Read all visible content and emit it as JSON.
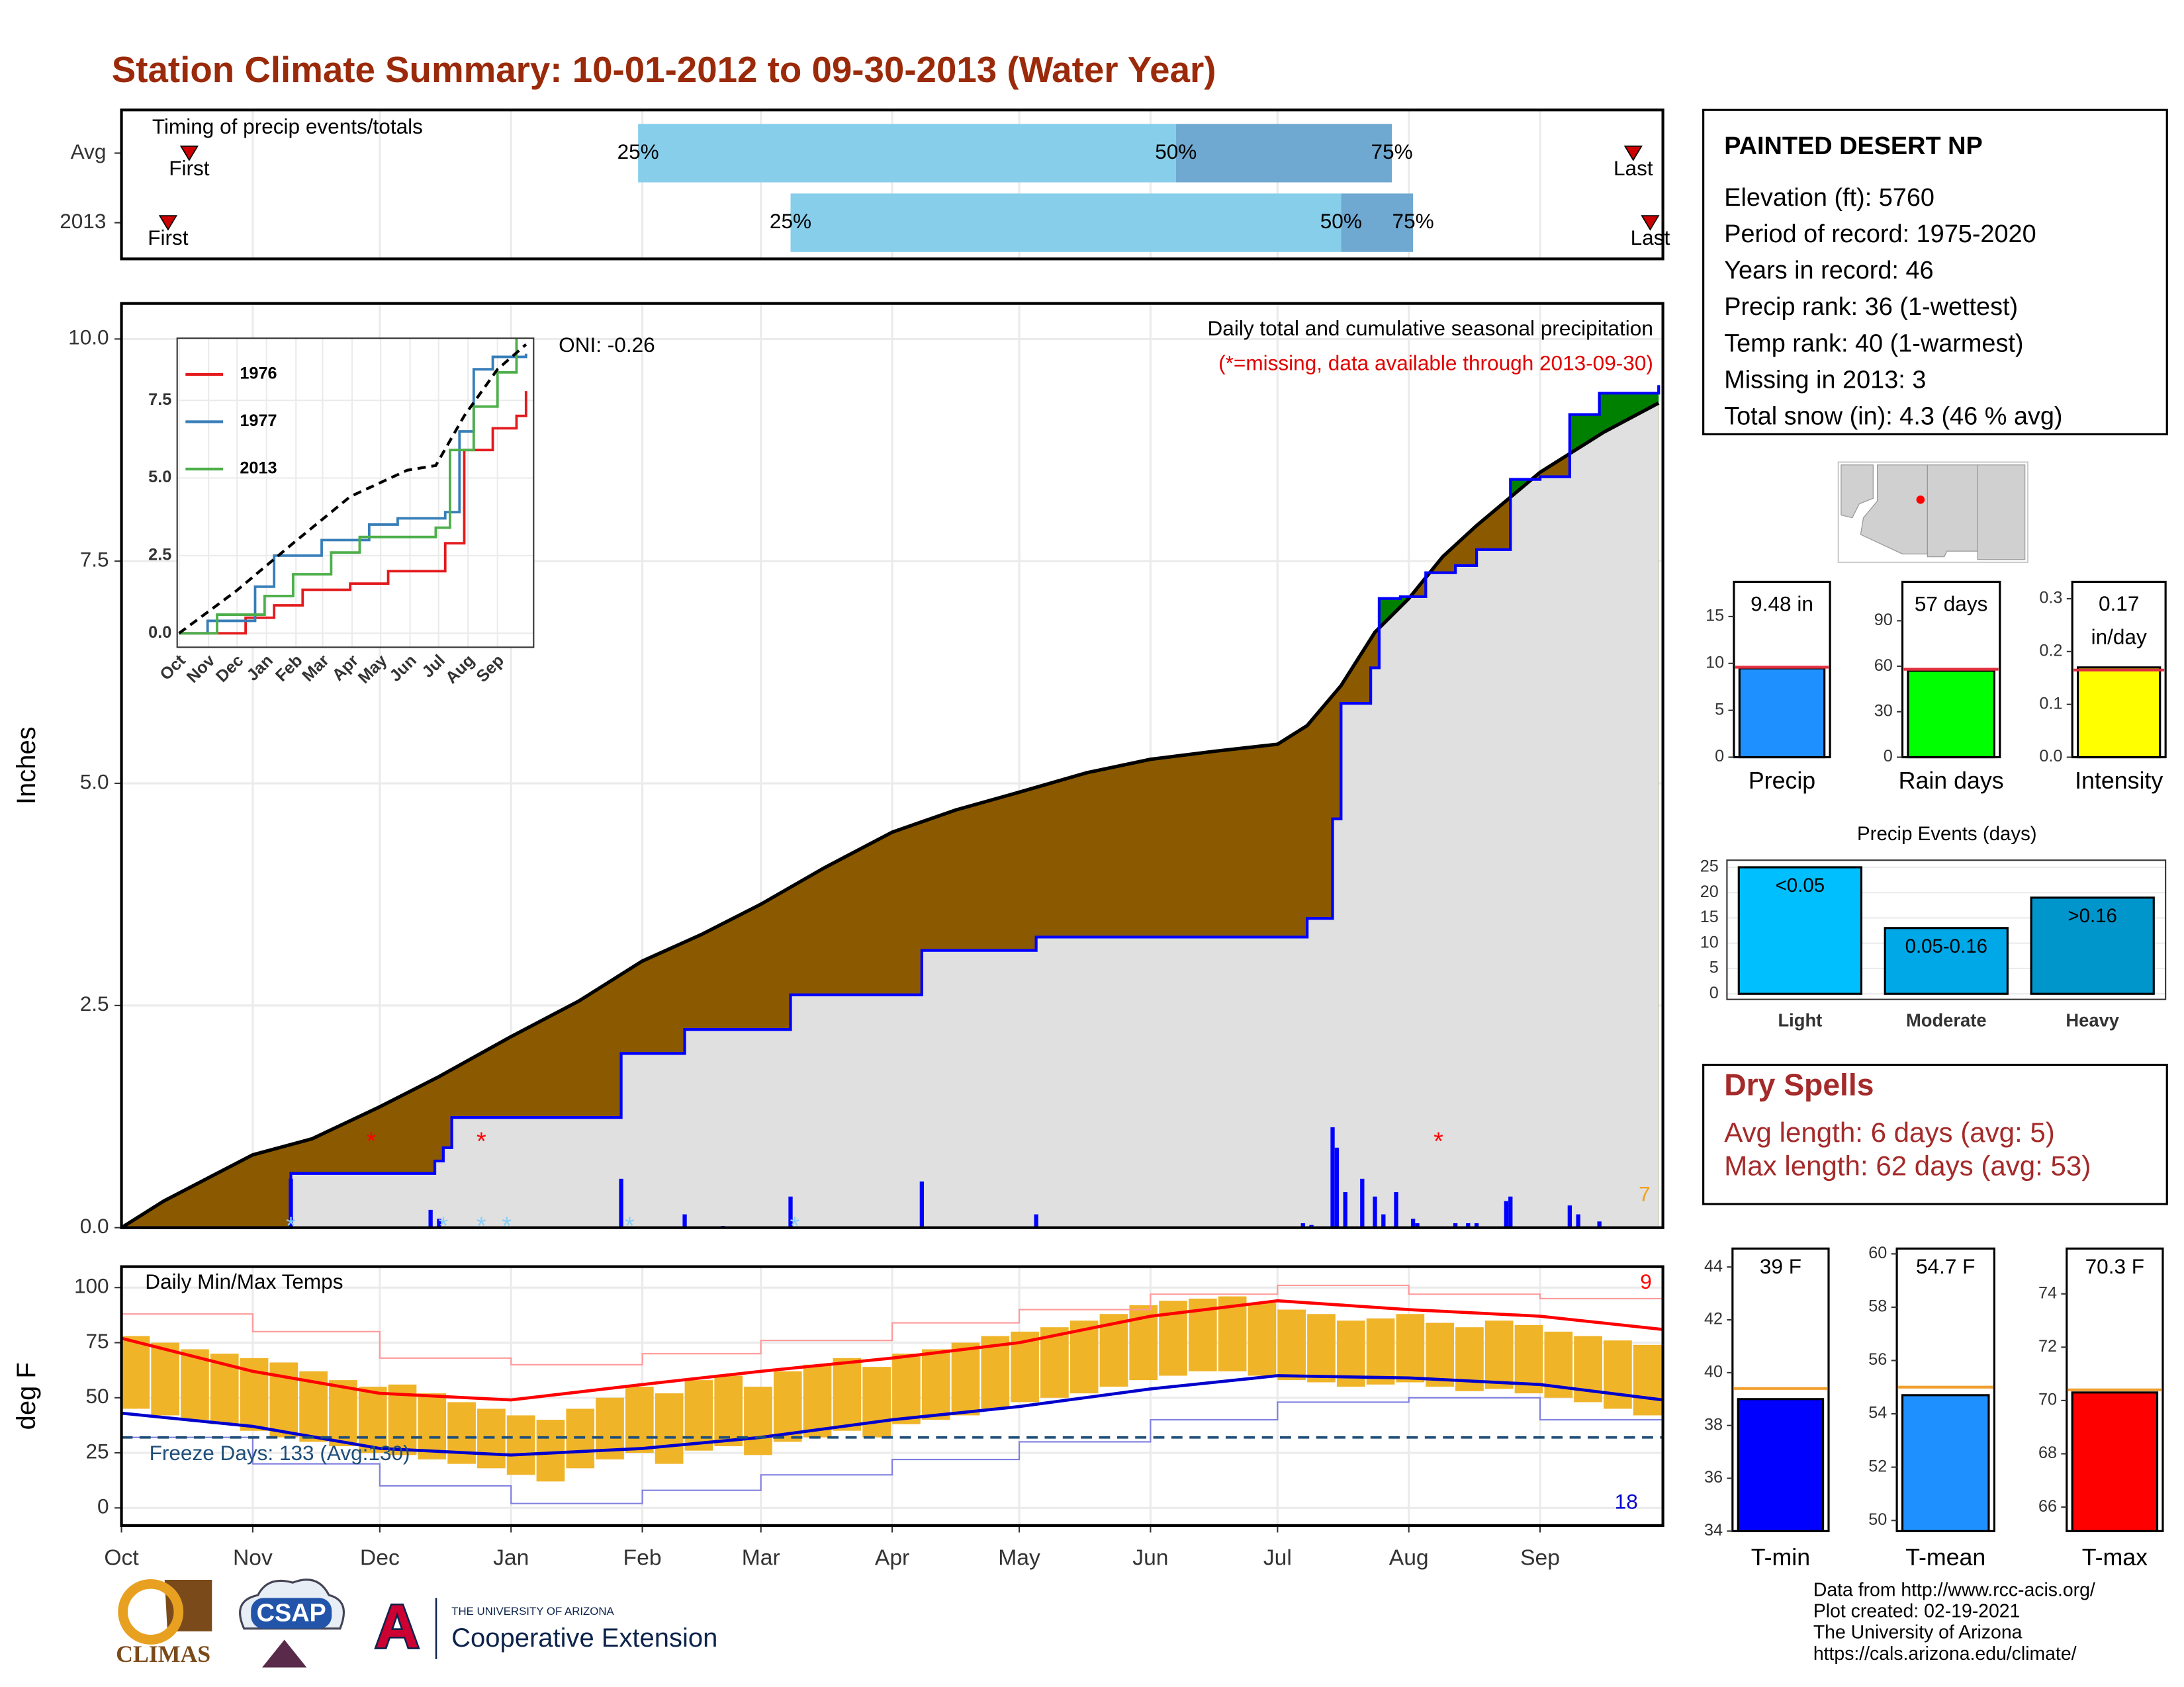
{
  "title": "Station Climate Summary: 10-01-2012 to 09-30-2013 (Water Year)",
  "chart_data": [
    {
      "type": "timing",
      "title": "Timing of precip events/totals",
      "xlim": [
        0,
        364
      ],
      "categories": [
        "Avg",
        "2013"
      ],
      "first": [
        16,
        11
      ],
      "p25": [
        122,
        158
      ],
      "p50": [
        249,
        288
      ],
      "p75": [
        300,
        305
      ],
      "last": [
        357,
        361
      ],
      "labels": {
        "first": "First",
        "p25": "25%",
        "p50": "50%",
        "p75": "75%",
        "last": "Last"
      },
      "colors": {
        "early": "#87ceeb",
        "late": "#6fa8d0",
        "marker": "#cc0000"
      }
    },
    {
      "type": "cumulative",
      "title": "Daily total and cumulative seasonal precipitation",
      "subtitle": "(*=missing, data available through 2013-09-30)",
      "annotation": "ONI: -0.26",
      "count_label": "7",
      "ylabel": "Inches",
      "xlim": [
        0,
        364
      ],
      "ylim": [
        0,
        10.4
      ],
      "yticks": [
        {
          "value": 0,
          "label": "0.0"
        },
        {
          "value": 2.5,
          "label": "2.5"
        },
        {
          "value": 5,
          "label": "5.0"
        },
        {
          "value": 7.5,
          "label": "7.5"
        },
        {
          "value": 10,
          "label": "10.0"
        }
      ],
      "average": {
        "color": "#000000",
        "x": [
          0,
          10,
          31,
          45,
          61,
          75,
          92,
          108,
          123,
          137,
          151,
          166,
          182,
          197,
          212,
          228,
          243,
          258,
          273,
          280,
          288,
          296,
          304,
          312,
          320,
          335,
          350,
          363
        ],
        "values": [
          0,
          0.3,
          0.82,
          1.0,
          1.36,
          1.7,
          2.15,
          2.55,
          3.0,
          3.3,
          3.64,
          4.05,
          4.45,
          4.7,
          4.9,
          5.12,
          5.27,
          5.36,
          5.44,
          5.65,
          6.1,
          6.7,
          7.08,
          7.55,
          7.9,
          8.5,
          8.95,
          9.28
        ]
      },
      "observed": {
        "color": "#0000ff",
        "x": [
          0,
          40,
          74,
          76,
          78,
          118,
          133,
          158,
          189,
          216,
          280,
          286,
          288,
          295,
          297,
          302,
          308,
          315,
          320,
          328,
          335,
          342,
          349,
          363
        ],
        "values": [
          0,
          0.61,
          0.75,
          0.9,
          1.24,
          1.96,
          2.23,
          2.62,
          3.12,
          3.27,
          3.48,
          4.6,
          5.9,
          6.3,
          7.08,
          7.1,
          7.37,
          7.45,
          7.63,
          8.42,
          8.45,
          9.15,
          9.39,
          9.48
        ]
      },
      "fill_colors": {
        "below": "#8b5a00",
        "above": "#008000",
        "base": "#e0e0e0"
      },
      "daily": {
        "color": "#0000ff",
        "x": [
          40,
          73,
          75,
          118,
          133,
          142,
          158,
          189,
          216,
          279,
          281,
          286,
          287,
          289,
          293,
          296,
          298,
          301,
          305,
          306,
          315,
          318,
          320,
          327,
          328,
          342,
          344,
          349
        ],
        "values": [
          0.55,
          0.2,
          0.1,
          0.55,
          0.15,
          0.02,
          0.35,
          0.52,
          0.15,
          0.05,
          0.03,
          1.13,
          0.9,
          0.4,
          0.55,
          0.35,
          0.15,
          0.4,
          0.1,
          0.05,
          0.05,
          0.05,
          0.05,
          0.3,
          0.35,
          0.25,
          0.15,
          0.07
        ]
      },
      "missing": {
        "label": "*",
        "color": "#ff0000",
        "x": [
          59,
          85,
          311
        ],
        "y": 1.0
      },
      "snow": {
        "label": "*",
        "color": "#87cefa",
        "x": [
          40,
          76,
          85,
          91,
          120,
          159
        ],
        "y": 0.05
      }
    },
    {
      "type": "line",
      "xlim": [
        -2,
        373
      ],
      "ylim": [
        -0.45,
        9.5
      ],
      "yticks": [
        {
          "value": 0,
          "label": "0.0"
        },
        {
          "value": 2.5,
          "label": "2.5"
        },
        {
          "value": 5,
          "label": "5.0"
        },
        {
          "value": 7.5,
          "label": "7.5"
        }
      ],
      "xticks": [
        {
          "value": 0,
          "label": "Oct"
        },
        {
          "value": 31,
          "label": "Nov"
        },
        {
          "value": 61,
          "label": "Dec"
        },
        {
          "value": 92,
          "label": "Jan"
        },
        {
          "value": 123,
          "label": "Feb"
        },
        {
          "value": 151,
          "label": "Mar"
        },
        {
          "value": 182,
          "label": "Apr"
        },
        {
          "value": 212,
          "label": "May"
        },
        {
          "value": 243,
          "label": "Jun"
        },
        {
          "value": 273,
          "label": "Jul"
        },
        {
          "value": 304,
          "label": "Aug"
        },
        {
          "value": 335,
          "label": "Sep"
        }
      ],
      "series": [
        {
          "name": "1976",
          "color": "#e41a1c",
          "x": [
            0,
            60,
            70,
            100,
            130,
            180,
            220,
            280,
            300,
            330,
            355,
            365
          ],
          "values": [
            0,
            0,
            0.5,
            0.9,
            1.4,
            1.6,
            2.0,
            2.9,
            5.9,
            6.6,
            7.0,
            7.8
          ]
        },
        {
          "name": "1977",
          "color": "#377eb8",
          "x": [
            0,
            30,
            80,
            100,
            150,
            200,
            230,
            280,
            295,
            310,
            330,
            365
          ],
          "values": [
            0,
            0.4,
            1.5,
            2.5,
            3.0,
            3.5,
            3.7,
            3.9,
            6.5,
            8.5,
            8.9,
            9.0
          ]
        },
        {
          "name": "2013",
          "color": "#4daf4a",
          "x": [
            0,
            40,
            90,
            120,
            160,
            190,
            270,
            285,
            310,
            335,
            355
          ],
          "values": [
            0,
            0.6,
            1.2,
            1.9,
            2.6,
            3.1,
            3.4,
            5.9,
            7.3,
            8.4,
            9.5
          ]
        }
      ],
      "average": {
        "color": "#000000",
        "x": [
          0,
          60,
          120,
          180,
          240,
          270,
          300,
          335,
          365
        ],
        "values": [
          0,
          1.36,
          2.9,
          4.4,
          5.25,
          5.4,
          7.0,
          8.5,
          9.3
        ]
      }
    },
    {
      "type": "temperature",
      "title": "Daily Min/Max Temps",
      "ylabel": "deg F",
      "xlim": [
        0,
        364
      ],
      "ylim": [
        -8,
        109.5
      ],
      "yticks": [
        0,
        25,
        50,
        75,
        100
      ],
      "xticks": [
        {
          "value": 0,
          "label": "Oct"
        },
        {
          "value": 31,
          "label": "Nov"
        },
        {
          "value": 61,
          "label": "Dec"
        },
        {
          "value": 92,
          "label": "Jan"
        },
        {
          "value": 123,
          "label": "Feb"
        },
        {
          "value": 151,
          "label": "Mar"
        },
        {
          "value": 182,
          "label": "Apr"
        },
        {
          "value": 212,
          "label": "May"
        },
        {
          "value": 243,
          "label": "Jun"
        },
        {
          "value": 273,
          "label": "Jul"
        },
        {
          "value": 304,
          "label": "Aug"
        },
        {
          "value": 335,
          "label": "Sep"
        }
      ],
      "daily": {
        "color": "#f0b429",
        "x": [
          0,
          7,
          14,
          21,
          28,
          35,
          42,
          49,
          56,
          63,
          70,
          77,
          84,
          91,
          98,
          105,
          112,
          119,
          126,
          133,
          140,
          147,
          154,
          161,
          168,
          175,
          182,
          189,
          196,
          203,
          210,
          217,
          224,
          231,
          238,
          245,
          252,
          259,
          266,
          273,
          280,
          287,
          294,
          301,
          308,
          315,
          322,
          329,
          336,
          343,
          350,
          357,
          364
        ],
        "tmax": [
          78,
          75,
          72,
          70,
          68,
          66,
          62,
          58,
          55,
          56,
          52,
          48,
          45,
          42,
          40,
          45,
          50,
          55,
          52,
          58,
          60,
          55,
          62,
          65,
          68,
          64,
          70,
          72,
          75,
          78,
          80,
          82,
          85,
          88,
          92,
          94,
          95,
          96,
          93,
          90,
          88,
          85,
          86,
          88,
          84,
          82,
          85,
          83,
          80,
          78,
          76,
          74,
          72
        ],
        "tmin": [
          45,
          42,
          40,
          38,
          35,
          32,
          30,
          28,
          25,
          24,
          22,
          20,
          18,
          15,
          12,
          18,
          22,
          25,
          20,
          26,
          28,
          24,
          30,
          32,
          35,
          32,
          38,
          40,
          42,
          45,
          48,
          50,
          52,
          55,
          58,
          60,
          62,
          62,
          60,
          58,
          57,
          55,
          56,
          57,
          55,
          53,
          54,
          52,
          50,
          48,
          45,
          42,
          40
        ]
      },
      "avg_max": {
        "color": "#ff0000",
        "x": [
          0,
          31,
          61,
          92,
          123,
          151,
          182,
          212,
          243,
          273,
          304,
          335,
          364
        ],
        "values": [
          77,
          62,
          52,
          49,
          56,
          62,
          68,
          75,
          87,
          94,
          90,
          87,
          81
        ]
      },
      "avg_min": {
        "color": "#0000cd",
        "x": [
          0,
          31,
          61,
          92,
          123,
          151,
          182,
          212,
          243,
          273,
          304,
          335,
          364
        ],
        "values": [
          43,
          37,
          27,
          24,
          27,
          32,
          40,
          46,
          54,
          60,
          59,
          56,
          49
        ]
      },
      "record_max": {
        "color": "#ff9999",
        "x": [
          0,
          31,
          61,
          92,
          123,
          151,
          182,
          212,
          243,
          273,
          304,
          335,
          364
        ],
        "values": [
          88,
          80,
          68,
          65,
          70,
          76,
          84,
          90,
          97,
          101,
          97,
          95,
          90
        ]
      },
      "record_min": {
        "color": "#8080e0",
        "x": [
          0,
          31,
          61,
          92,
          123,
          151,
          182,
          212,
          243,
          273,
          304,
          335,
          364
        ],
        "values": [
          32,
          20,
          10,
          2,
          8,
          15,
          22,
          30,
          40,
          48,
          50,
          40,
          32
        ]
      },
      "freeze": {
        "value": 32,
        "label": "Freeze Days: 133 (Avg:130)",
        "color": "#1f4e79"
      },
      "count_high": {
        "label": "9",
        "color": "#ff0000"
      },
      "count_low": {
        "label": "18",
        "color": "#0000cd"
      }
    },
    {
      "type": "summary_bars",
      "average_color": "#e03040",
      "panels": [
        {
          "category": "Precip",
          "value": 9.48,
          "value_label": "9.48 in",
          "average": 9.6,
          "color": "#1e90ff",
          "ylim": [
            0,
            18.7
          ],
          "yticks": [
            0,
            5,
            10,
            15
          ]
        },
        {
          "category": "Rain days",
          "value": 57,
          "value_label": "57 days",
          "average": 58,
          "color": "#00ff00",
          "ylim": [
            0,
            115.7
          ],
          "yticks": [
            0,
            30,
            60,
            90
          ]
        },
        {
          "category": "Intensity",
          "value": 0.17,
          "value_label": "0.17 in/day",
          "average": 0.165,
          "color": "#ffff00",
          "ylim": [
            0,
            0.332
          ],
          "yticks": [
            {
              "value": 0,
              "label": "0.0"
            },
            0.1,
            0.2,
            0.3
          ]
        }
      ]
    },
    {
      "type": "bar",
      "title": "Precip Events (days)",
      "categories": [
        "Light",
        "Moderate",
        "Heavy"
      ],
      "bin_labels": [
        "<0.05",
        "0.05-0.16",
        ">0.16"
      ],
      "values": [
        25,
        13,
        19
      ],
      "colors": [
        "#00bfff",
        "#00a8e8",
        "#0096cc"
      ],
      "ylim": [
        -1.1,
        26.4
      ],
      "yticks": [
        0,
        5,
        10,
        15,
        20,
        25
      ],
      "grid": true
    },
    {
      "type": "summary_bars",
      "average_color": "#f0a030",
      "panels": [
        {
          "category": "T-min",
          "value": 39,
          "value_label": "39 F",
          "average": 39.4,
          "color": "#0000ff",
          "ylim": [
            34,
            44.7
          ],
          "yticks": [
            34,
            36,
            38,
            40,
            42,
            44
          ]
        },
        {
          "category": "T-mean",
          "value": 54.7,
          "value_label": "54.7 F",
          "average": 55.0,
          "color": "#1e90ff",
          "ylim": [
            49.6,
            60.2
          ],
          "yticks": [
            50,
            52,
            54,
            56,
            58,
            60
          ]
        },
        {
          "category": "T-max",
          "value": 70.3,
          "value_label": "70.3 F",
          "average": 70.4,
          "color": "#ff0000",
          "ylim": [
            65.1,
            75.7
          ],
          "yticks": [
            66,
            68,
            70,
            72,
            74
          ]
        }
      ]
    }
  ],
  "station": {
    "name": "PAINTED DESERT NP",
    "lines": [
      "Elevation (ft): 5760",
      "Period of record: 1975-2020",
      "Years in record: 46",
      "Precip rank: 36 (1-wettest)",
      "Temp rank: 40 (1-warmest)",
      "Missing in 2013: 3",
      "Total snow (in): 4.3 (46 % avg)"
    ]
  },
  "dry_spells": {
    "title": "Dry Spells",
    "lines": [
      "Avg length: 6 days (avg: 5)",
      "Max length: 62 days (avg: 53)"
    ]
  },
  "footer": [
    "Data from http://www.rcc-acis.org/",
    "Plot created: 02-19-2021",
    "The University of Arizona",
    "https://cals.arizona.edu/climate/"
  ],
  "logos": {
    "climas": "CLIMAS",
    "csap": "CSAP",
    "ua_letter": "A",
    "ua_small": "THE UNIVERSITY OF ARIZONA",
    "ua_name": "Cooperative Extension"
  }
}
